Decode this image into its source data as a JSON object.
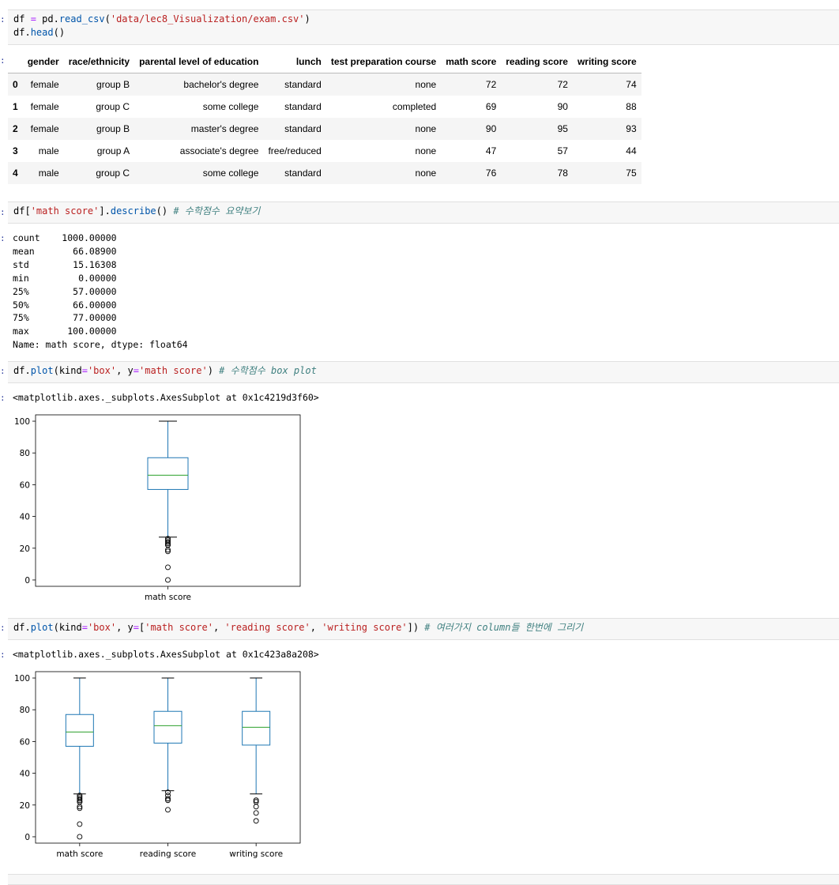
{
  "cells": [
    {
      "input_lines": [
        [
          {
            "t": "df ",
            "c": "kw"
          },
          {
            "t": "=",
            "c": "op"
          },
          {
            "t": " pd.",
            "c": "kw"
          },
          {
            "t": "read_csv",
            "c": "fn"
          },
          {
            "t": "(",
            "c": "kw"
          },
          {
            "t": "'data/lec8_Visualization/exam.csv'",
            "c": "str"
          },
          {
            "t": ")",
            "c": "kw"
          }
        ],
        [
          {
            "t": "df.",
            "c": "kw"
          },
          {
            "t": "head",
            "c": "fn"
          },
          {
            "t": "()",
            "c": "kw"
          }
        ]
      ]
    },
    {
      "input_lines": [
        [
          {
            "t": "df[",
            "c": "kw"
          },
          {
            "t": "'math score'",
            "c": "str"
          },
          {
            "t": "].",
            "c": "kw"
          },
          {
            "t": "describe",
            "c": "fn"
          },
          {
            "t": "() ",
            "c": "kw"
          },
          {
            "t": "# 수학점수 요약보기",
            "c": "cm"
          }
        ]
      ]
    },
    {
      "input_lines": [
        [
          {
            "t": "df.",
            "c": "kw"
          },
          {
            "t": "plot",
            "c": "fn"
          },
          {
            "t": "(kind",
            "c": "kw"
          },
          {
            "t": "=",
            "c": "op"
          },
          {
            "t": "'box'",
            "c": "str"
          },
          {
            "t": ", y",
            "c": "kw"
          },
          {
            "t": "=",
            "c": "op"
          },
          {
            "t": "'math score'",
            "c": "str"
          },
          {
            "t": ") ",
            "c": "kw"
          },
          {
            "t": "# 수학점수 box plot",
            "c": "cm"
          }
        ]
      ]
    },
    {
      "input_lines": [
        [
          {
            "t": "df.",
            "c": "kw"
          },
          {
            "t": "plot",
            "c": "fn"
          },
          {
            "t": "(kind",
            "c": "kw"
          },
          {
            "t": "=",
            "c": "op"
          },
          {
            "t": "'box'",
            "c": "str"
          },
          {
            "t": ", y",
            "c": "kw"
          },
          {
            "t": "=",
            "c": "op"
          },
          {
            "t": "[",
            "c": "kw"
          },
          {
            "t": "'math score'",
            "c": "str"
          },
          {
            "t": ", ",
            "c": "kw"
          },
          {
            "t": "'reading score'",
            "c": "str"
          },
          {
            "t": ", ",
            "c": "kw"
          },
          {
            "t": "'writing score'",
            "c": "str"
          },
          {
            "t": "]) ",
            "c": "kw"
          },
          {
            "t": "# 여러가지 column들 한번에 그리기",
            "c": "cm"
          }
        ]
      ]
    }
  ],
  "dataframe": {
    "columns": [
      "",
      "gender",
      "race/ethnicity",
      "parental level of education",
      "lunch",
      "test preparation course",
      "math score",
      "reading score",
      "writing score"
    ],
    "rows": [
      [
        "0",
        "female",
        "group B",
        "bachelor's degree",
        "standard",
        "none",
        "72",
        "72",
        "74"
      ],
      [
        "1",
        "female",
        "group C",
        "some college",
        "standard",
        "completed",
        "69",
        "90",
        "88"
      ],
      [
        "2",
        "female",
        "group B",
        "master's degree",
        "standard",
        "none",
        "90",
        "95",
        "93"
      ],
      [
        "3",
        "male",
        "group A",
        "associate's degree",
        "free/reduced",
        "none",
        "47",
        "57",
        "44"
      ],
      [
        "4",
        "male",
        "group C",
        "some college",
        "standard",
        "none",
        "76",
        "78",
        "75"
      ]
    ]
  },
  "describe_output": "count    1000.00000\nmean       66.08900\nstd        15.16308\nmin         0.00000\n25%        57.00000\n50%        66.00000\n75%        77.00000\nmax       100.00000\nName: math score, dtype: float64",
  "axes_repr_1": "<matplotlib.axes._subplots.AxesSubplot at 0x1c4219d3f60>",
  "axes_repr_2": "<matplotlib.axes._subplots.AxesSubplot at 0x1c423a8a208>",
  "prompt_glyph": ":",
  "colors": {
    "box": "#1f77b4",
    "median": "#2ca02c",
    "whisker": "#1f77b4",
    "cap": "#000000",
    "flier": "#000000"
  },
  "chart_data": [
    {
      "type": "box",
      "ylim": [
        -4,
        104
      ],
      "yticks": [
        0,
        20,
        40,
        60,
        80,
        100
      ],
      "series": [
        {
          "name": "math score",
          "q1": 57,
          "median": 66,
          "q3": 77,
          "whislo": 27,
          "whishi": 100,
          "fliers": [
            26,
            25,
            24,
            23,
            22,
            22,
            19,
            18,
            8,
            0
          ]
        }
      ]
    },
    {
      "type": "box",
      "ylim": [
        -4,
        104
      ],
      "yticks": [
        0,
        20,
        40,
        60,
        80,
        100
      ],
      "series": [
        {
          "name": "math score",
          "q1": 57,
          "median": 66,
          "q3": 77,
          "whislo": 27,
          "whishi": 100,
          "fliers": [
            26,
            25,
            24,
            23,
            22,
            22,
            19,
            18,
            8,
            0
          ]
        },
        {
          "name": "reading score",
          "q1": 59,
          "median": 70,
          "q3": 79,
          "whislo": 29,
          "whishi": 100,
          "fliers": [
            28,
            26,
            24,
            23,
            17
          ]
        },
        {
          "name": "writing score",
          "q1": 57.75,
          "median": 69,
          "q3": 79,
          "whislo": 27,
          "whishi": 100,
          "fliers": [
            23,
            22,
            19,
            15,
            10
          ]
        }
      ]
    }
  ]
}
